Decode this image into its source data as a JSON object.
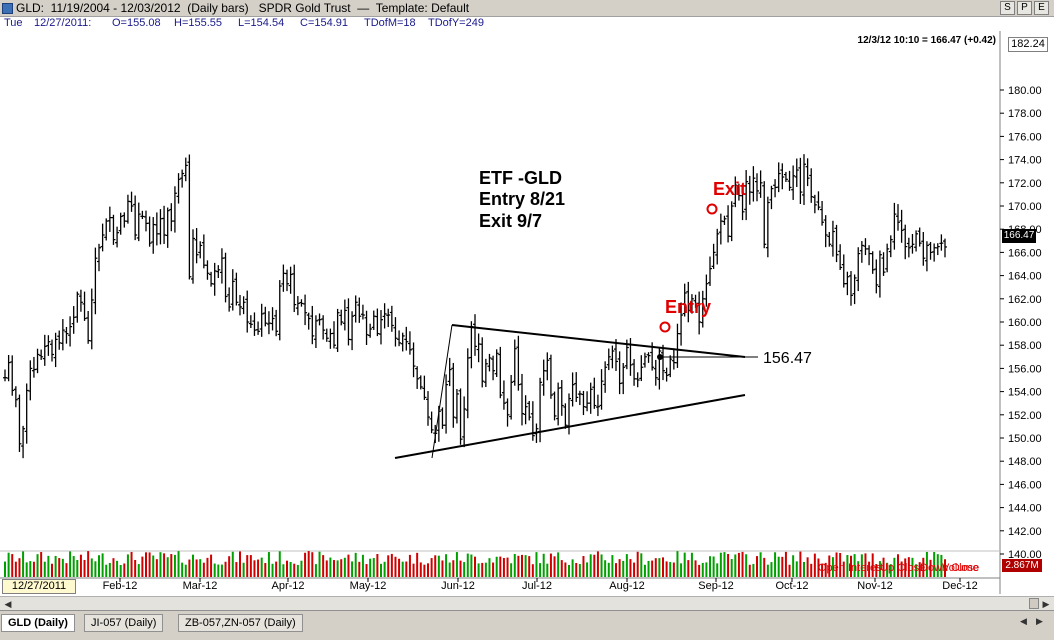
{
  "window": {
    "title": "GLD:  11/19/2004 - 12/03/2012  (Daily bars)   SPDR Gold Trust  —  Template: Default",
    "buttons": [
      "S",
      "P",
      "E"
    ]
  },
  "info_bar": {
    "day": "Tue",
    "date": "12/27/2011:",
    "open": "O=155.08",
    "high": "H=155.55",
    "low": "L=154.54",
    "close": "C=154.91",
    "tdm": "TDofM=18",
    "tdy": "TDofY=249"
  },
  "quote_line": "12/3/12 10:10 = 166.47 (+0.42)",
  "top_price_box": "182.24",
  "cursor_date": "12/27/2011",
  "volume_box": "2.867M",
  "last_price_label": "166.47",
  "lower_pane_labels": [
    "Open Interest",
    "Up Close",
    "Down Close",
    "Volume"
  ],
  "annotation": {
    "lines": [
      "ETF -GLD",
      "Entry 8/21",
      "Exit 9/7"
    ],
    "entry_label": "Entry",
    "exit_label": "Exit",
    "target_price": "156.47"
  },
  "tabs": [
    {
      "label": "GLD (Daily)",
      "active": true
    },
    {
      "label": "JI-057 (Daily)",
      "active": false
    },
    {
      "label": "ZB-057,ZN-057 (Daily)",
      "active": false
    }
  ],
  "colors": {
    "up_volume": "#00a000",
    "down_volume": "#d00000",
    "annotation_red": "#e00000",
    "label_blue": "#1a1a8c"
  },
  "chart_data": {
    "type": "bar",
    "ylim": [
      140,
      182
    ],
    "y_ticks": [
      "140.00",
      "142.00",
      "144.00",
      "146.00",
      "148.00",
      "150.00",
      "152.00",
      "154.00",
      "156.00",
      "158.00",
      "160.00",
      "162.00",
      "164.00",
      "166.00",
      "168.00",
      "170.00",
      "172.00",
      "174.00",
      "176.00",
      "178.00",
      "180.00"
    ],
    "x_ticks": [
      "Feb-12",
      "Mar-12",
      "Apr-12",
      "May-12",
      "Jun-12",
      "Jul-12",
      "Aug-12",
      "Sep-12",
      "Oct-12",
      "Nov-12",
      "Dec-12"
    ],
    "closes": [
      155.2,
      156.5,
      154.1,
      153.3,
      149.5,
      150.8,
      154.1,
      156.0,
      155.9,
      157.2,
      157.0,
      157.9,
      158.3,
      157.2,
      158.5,
      158.2,
      159.3,
      159.0,
      159.6,
      160.4,
      162.4,
      161.7,
      160.3,
      158.4,
      161.9,
      165.5,
      166.4,
      167.5,
      168.7,
      169.0,
      167.1,
      167.7,
      169.1,
      168.7,
      170.4,
      170.0,
      167.5,
      169.3,
      169.1,
      168.5,
      166.8,
      168.4,
      167.6,
      168.9,
      167.5,
      169.6,
      168.7,
      171.1,
      172.3,
      172.8,
      173.5,
      163.9,
      167.2,
      165.8,
      166.6,
      164.9,
      164.2,
      163.3,
      164.4,
      164.5,
      165.5,
      162.2,
      161.3,
      163.5,
      161.7,
      161.3,
      161.7,
      160.0,
      159.8,
      159.3,
      159.2,
      160.7,
      159.9,
      159.9,
      160.3,
      159.2,
      163.1,
      164.2,
      163.3,
      164.1,
      161.5,
      161.6,
      161.6,
      160.8,
      160.3,
      158.8,
      160.1,
      160.2,
      159.3,
      158.6,
      159.0,
      158.0,
      160.8,
      160.0,
      161.0,
      158.5,
      160.5,
      161.7,
      160.5,
      160.6,
      158.9,
      159.4,
      160.5,
      159.0,
      160.2,
      160.7,
      160.6,
      159.7,
      158.6,
      158.2,
      158.8,
      158.3,
      157.6,
      156.2,
      155.1,
      154.4,
      153.5,
      151.8,
      150.7,
      150.4,
      152.3,
      151.1,
      154.6,
      155.9,
      151.8,
      153.8,
      149.9,
      152.5,
      156.9,
      159.6,
      157.9,
      158.1,
      154.9,
      156.4,
      156.9,
      155.8,
      157.3,
      153.7,
      153.0,
      152.0,
      154.8,
      157.7,
      154.6,
      152.1,
      152.7,
      151.8,
      150.2,
      150.8,
      154.8,
      155.8,
      156.7,
      153.7,
      151.9,
      154.3,
      152.8,
      151.1,
      153.4,
      154.6,
      153.5,
      153.8,
      152.7,
      153.0,
      154.2,
      152.8,
      152.7,
      154.9,
      156.1,
      157.0,
      157.5,
      156.6,
      154.7,
      156.1,
      157.8,
      156.3,
      155.1,
      155.0,
      156.1,
      157.0,
      157.1,
      156.1,
      155.2,
      157.5,
      155.8,
      155.4,
      156.8,
      156.5,
      159.0,
      160.6,
      162.5,
      161.0,
      162.0,
      161.6,
      160.0,
      162.0,
      163.3,
      164.6,
      166.0,
      167.6,
      168.7,
      168.9,
      167.4,
      170.0,
      171.8,
      170.9,
      169.5,
      172.1,
      171.2,
      172.4,
      171.3,
      172.0,
      166.7,
      170.3,
      171.5,
      171.6,
      172.8,
      172.5,
      172.3,
      171.6,
      172.6,
      173.1,
      171.2,
      173.6,
      172.4,
      170.8,
      170.1,
      169.9,
      168.6,
      167.5,
      166.7,
      167.8,
      165.8,
      164.7,
      163.3,
      163.9,
      162.3,
      163.8,
      165.9,
      166.6,
      166.3,
      165.9,
      164.5,
      163.2,
      165.8,
      164.3,
      166.3,
      167.1,
      169.3,
      168.6,
      167.9,
      166.5,
      166.4,
      166.7,
      167.6,
      166.8,
      165.5,
      166.6,
      166.0,
      166.4,
      166.5,
      166.8,
      166.47
    ]
  }
}
